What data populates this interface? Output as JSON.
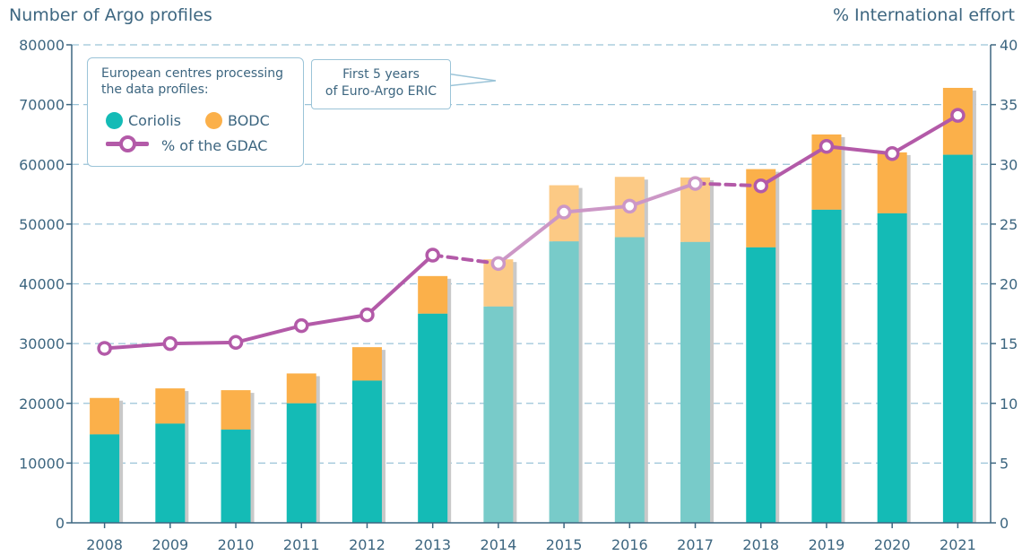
{
  "left_axis_title": "Number of Argo profiles",
  "right_axis_title": "% International effort",
  "legend": {
    "heading_line1": "European centres processing",
    "heading_line2": "the data profiles:",
    "coriolis": "Coriolis",
    "bodc": "BODC",
    "gdac": "% of the GDAC"
  },
  "callout": {
    "line1": "First 5 years",
    "line2": "of Euro-Argo ERIC"
  },
  "colors": {
    "coriolis": "#14bbb6",
    "coriolis_faded": "#78cbc9",
    "bodc": "#fbb04a",
    "bodc_faded": "#fcca85",
    "gdac_line": "#b35aa8",
    "gdac_line_faded": "#cc97c6",
    "axis": "#3d6680",
    "grid": "#9bc4d8"
  },
  "chart_data": {
    "type": "bar",
    "stacked": true,
    "categories": [
      "2008",
      "2009",
      "2010",
      "2011",
      "2012",
      "2013",
      "2014",
      "2015",
      "2016",
      "2017",
      "2018",
      "2019",
      "2020",
      "2021"
    ],
    "highlighted_range": [
      "2014",
      "2017"
    ],
    "series": [
      {
        "name": "Coriolis",
        "axis": "left",
        "values": [
          14800,
          16600,
          15600,
          20000,
          23800,
          35000,
          36200,
          47100,
          47800,
          47000,
          46100,
          52400,
          51800,
          61600
        ]
      },
      {
        "name": "BODC",
        "axis": "left",
        "values": [
          6100,
          5900,
          6600,
          5000,
          5600,
          6300,
          7900,
          9400,
          10100,
          10800,
          13100,
          12600,
          10200,
          11200
        ]
      },
      {
        "name": "% of the GDAC",
        "type": "line",
        "axis": "right",
        "values": [
          14.6,
          15.0,
          15.1,
          16.5,
          17.4,
          22.4,
          21.7,
          26.0,
          26.5,
          28.4,
          28.2,
          31.5,
          30.9,
          34.1
        ]
      }
    ],
    "y_left": {
      "label": "Number of Argo profiles",
      "range": [
        0,
        80000
      ],
      "ticks": [
        0,
        10000,
        20000,
        30000,
        40000,
        50000,
        60000,
        70000,
        80000
      ]
    },
    "y_right": {
      "label": "% International effort",
      "range": [
        0,
        40
      ],
      "ticks": [
        0,
        5,
        10,
        15,
        20,
        25,
        30,
        35,
        40
      ]
    },
    "grid": "horizontal dashed",
    "legend_position": "top-left"
  }
}
